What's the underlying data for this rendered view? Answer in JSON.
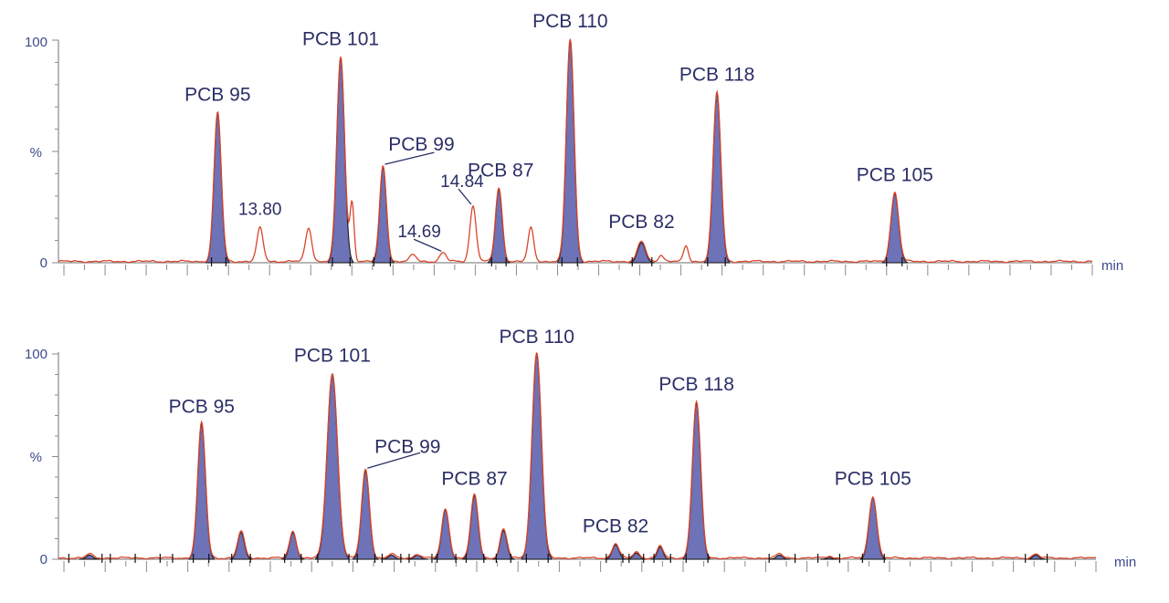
{
  "colors": {
    "trace": "#d9452c",
    "peak_fill": "#6e72b6",
    "axis": "#8a8a8a",
    "axis_label": "#3d4a8c",
    "peak_label": "#2b2f66"
  },
  "chart_data": [
    {
      "type": "line",
      "panel": "top",
      "x_unit": "min",
      "xlabel": "min",
      "ylabel": "%",
      "y_ticks": [
        "0",
        "%",
        "100"
      ],
      "ylim": [
        0,
        100
      ],
      "xlim": [
        0,
        100
      ],
      "grid": false,
      "peaks": [
        {
          "x": 15.4,
          "height": 67,
          "width": 0.7,
          "label": "PCB 95",
          "filled": true
        },
        {
          "x": 19.5,
          "height": 15,
          "width": 0.6,
          "label": "13.80",
          "filled": false,
          "kind": "rt"
        },
        {
          "x": 24.2,
          "height": 15,
          "width": 0.6,
          "label": "",
          "filled": false
        },
        {
          "x": 27.3,
          "height": 92,
          "width": 0.75,
          "label": "PCB 101",
          "filled": true
        },
        {
          "x": 28.4,
          "height": 26,
          "width": 0.4,
          "label": "",
          "filled": false
        },
        {
          "x": 31.4,
          "height": 43,
          "width": 0.65,
          "label": "PCB 99",
          "filled": true,
          "leader": true
        },
        {
          "x": 34.3,
          "height": 3,
          "width": 0.6,
          "label": "",
          "filled": false
        },
        {
          "x": 37.2,
          "height": 4,
          "width": 0.6,
          "label": "14.69",
          "filled": false,
          "kind": "rt",
          "leader": true
        },
        {
          "x": 40.1,
          "height": 25,
          "width": 0.6,
          "label": "14.84",
          "filled": false,
          "kind": "rt",
          "leader": true
        },
        {
          "x": 42.6,
          "height": 33,
          "width": 0.65,
          "label": "PCB 87",
          "filled": true
        },
        {
          "x": 45.7,
          "height": 15,
          "width": 0.55,
          "label": "",
          "filled": false
        },
        {
          "x": 49.5,
          "height": 100,
          "width": 0.75,
          "label": "PCB 110",
          "filled": true
        },
        {
          "x": 56.4,
          "height": 9,
          "width": 0.75,
          "label": "PCB 82",
          "filled": true
        },
        {
          "x": 58.3,
          "height": 3,
          "width": 0.5,
          "label": "",
          "filled": false
        },
        {
          "x": 60.7,
          "height": 7,
          "width": 0.45,
          "label": "",
          "filled": false
        },
        {
          "x": 63.7,
          "height": 76,
          "width": 0.75,
          "label": "PCB 118",
          "filled": true
        },
        {
          "x": 80.9,
          "height": 31,
          "width": 0.75,
          "label": "PCB 105",
          "filled": true
        }
      ]
    },
    {
      "type": "line",
      "panel": "bottom",
      "x_unit": "min",
      "xlabel": "min",
      "ylabel": "%",
      "y_ticks": [
        "0",
        "%",
        "100"
      ],
      "ylim": [
        0,
        100
      ],
      "xlim": [
        0,
        100
      ],
      "grid": false,
      "peaks": [
        {
          "x": 3.0,
          "height": 2,
          "width": 0.6,
          "label": "",
          "filled": true
        },
        {
          "x": 13.8,
          "height": 66,
          "width": 0.75,
          "label": "PCB 95",
          "filled": true
        },
        {
          "x": 17.6,
          "height": 13,
          "width": 0.65,
          "label": "",
          "filled": true
        },
        {
          "x": 22.6,
          "height": 13,
          "width": 0.65,
          "label": "",
          "filled": true
        },
        {
          "x": 26.4,
          "height": 90,
          "width": 1.0,
          "label": "PCB 101",
          "filled": true
        },
        {
          "x": 29.6,
          "height": 43,
          "width": 0.75,
          "label": "PCB 99",
          "filled": true,
          "leader": true
        },
        {
          "x": 32.1,
          "height": 2,
          "width": 0.6,
          "label": "",
          "filled": true
        },
        {
          "x": 34.6,
          "height": 2,
          "width": 0.6,
          "label": "",
          "filled": true
        },
        {
          "x": 37.3,
          "height": 24,
          "width": 0.7,
          "label": "",
          "filled": true
        },
        {
          "x": 40.1,
          "height": 31,
          "width": 0.7,
          "label": "PCB 87",
          "filled": true
        },
        {
          "x": 42.9,
          "height": 14,
          "width": 0.65,
          "label": "",
          "filled": true
        },
        {
          "x": 46.1,
          "height": 100,
          "width": 0.9,
          "label": "PCB 110",
          "filled": true
        },
        {
          "x": 53.7,
          "height": 7,
          "width": 0.65,
          "label": "PCB 82",
          "filled": true
        },
        {
          "x": 55.7,
          "height": 3,
          "width": 0.6,
          "label": "",
          "filled": true
        },
        {
          "x": 58.0,
          "height": 6,
          "width": 0.55,
          "label": "",
          "filled": true
        },
        {
          "x": 61.5,
          "height": 76,
          "width": 0.8,
          "label": "PCB 118",
          "filled": true
        },
        {
          "x": 69.5,
          "height": 2,
          "width": 0.6,
          "label": "",
          "filled": true
        },
        {
          "x": 74.3,
          "height": 1,
          "width": 0.5,
          "label": "",
          "filled": true
        },
        {
          "x": 78.5,
          "height": 30,
          "width": 0.75,
          "label": "PCB 105",
          "filled": true
        },
        {
          "x": 94.2,
          "height": 2,
          "width": 0.6,
          "label": "",
          "filled": true
        }
      ]
    }
  ]
}
